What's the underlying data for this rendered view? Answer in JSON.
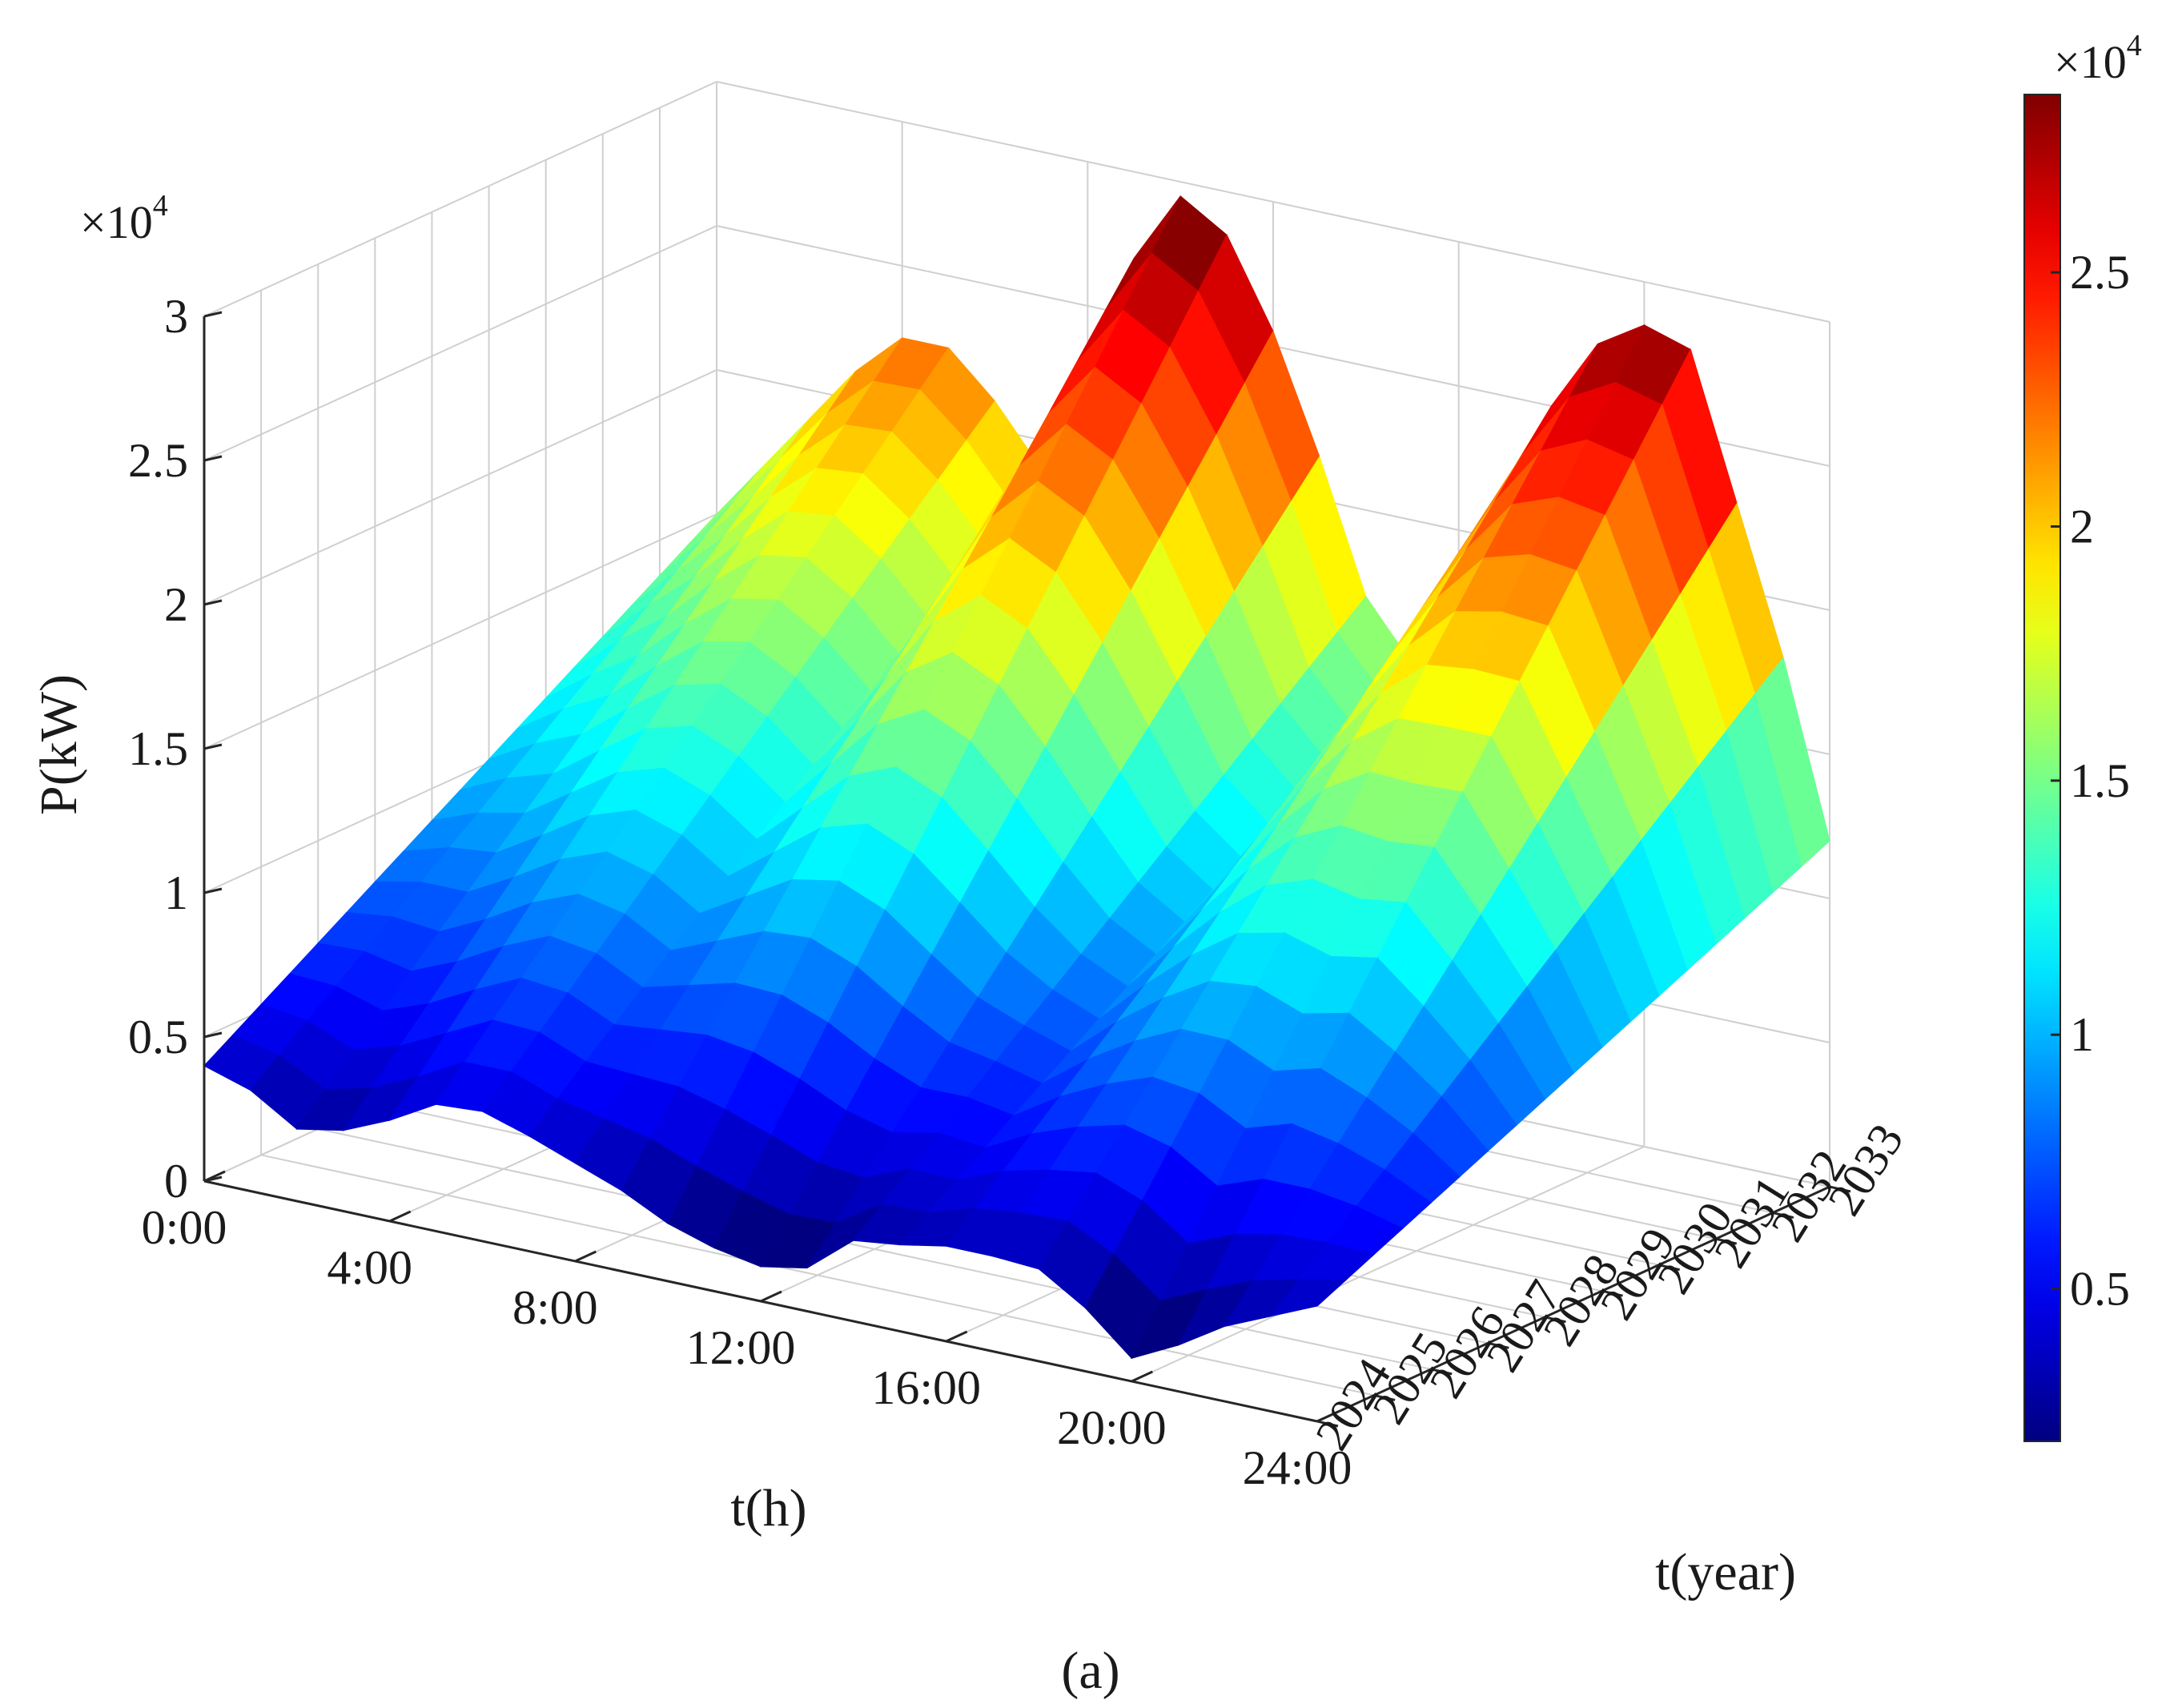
{
  "chart_data": {
    "type": "surface",
    "caption": "(a)",
    "xlabel": "t(h)",
    "ylabel": "t(year)",
    "zlabel": "P(kW)",
    "z_exponent": "×10",
    "z_exponent_power": "4",
    "colorbar_exponent": "×10",
    "colorbar_exponent_power": "4",
    "colormap": "jet",
    "x_ticks": [
      "0:00",
      "4:00",
      "8:00",
      "12:00",
      "16:00",
      "20:00",
      "24:00"
    ],
    "x_tick_values": [
      0,
      4,
      8,
      12,
      16,
      20,
      24
    ],
    "y_ticks": [
      "2024",
      "2025",
      "2026",
      "2027",
      "2028",
      "2029",
      "2030",
      "2031",
      "2032",
      "2033"
    ],
    "y_tick_values": [
      2024,
      2025,
      2026,
      2027,
      2028,
      2029,
      2030,
      2031,
      2032,
      2033
    ],
    "z_ticks": [
      "0",
      "0.5",
      "1",
      "1.5",
      "2",
      "2.5",
      "3"
    ],
    "z_tick_values": [
      0,
      0.5,
      1,
      1.5,
      2,
      2.5,
      3
    ],
    "zlim": [
      0,
      3
    ],
    "xlim": [
      0,
      24
    ],
    "ylim": [
      2024,
      2033
    ],
    "colorbar_ticks": [
      "0.5",
      "1",
      "1.5",
      "2",
      "2.5"
    ],
    "colorbar_tick_values": [
      0.5,
      1,
      1.5,
      2,
      2.5
    ],
    "colorbar_range": [
      0.2,
      2.85
    ],
    "grid": true,
    "surface_hours": [
      0,
      1,
      2,
      3,
      4,
      5,
      6,
      7,
      8,
      9,
      10,
      11,
      12,
      13,
      14,
      15,
      16,
      17,
      18,
      19,
      20,
      21,
      22,
      23,
      24
    ],
    "surface_2024": [
      0.4,
      0.35,
      0.25,
      0.28,
      0.35,
      0.44,
      0.45,
      0.4,
      0.34,
      0.28,
      0.2,
      0.15,
      0.12,
      0.15,
      0.28,
      0.3,
      0.33,
      0.33,
      0.32,
      0.22,
      0.08,
      0.16,
      0.26,
      0.33,
      0.4
    ],
    "surface_2033": [
      1.5,
      1.7,
      1.9,
      2.1,
      2.25,
      2.25,
      2.1,
      1.9,
      2.3,
      2.7,
      2.95,
      2.85,
      2.55,
      2.15,
      1.7,
      1.5,
      1.85,
      2.2,
      2.5,
      2.75,
      2.85,
      2.8,
      2.3,
      1.8,
      1.2
    ]
  }
}
